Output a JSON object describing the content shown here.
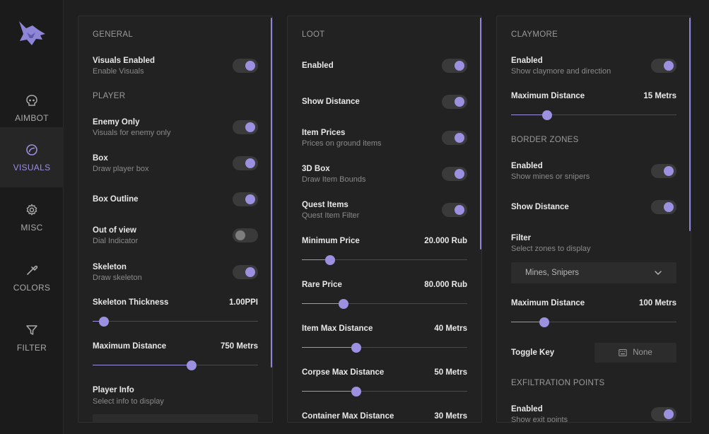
{
  "sidebar": {
    "logo_icon": "wolf-logo-icon",
    "items": [
      {
        "name": "aimbot",
        "label": "AIMBOT",
        "icon": "skull-icon",
        "active": false
      },
      {
        "name": "visuals",
        "label": "VISUALS",
        "icon": "eye-icon",
        "active": true
      },
      {
        "name": "misc",
        "label": "MISC",
        "icon": "gear-icon",
        "active": false
      },
      {
        "name": "colors",
        "label": "COLORS",
        "icon": "eyedropper-icon",
        "active": false
      },
      {
        "name": "filter",
        "label": "FILTER",
        "icon": "filter-icon",
        "active": false
      }
    ]
  },
  "accent_color": "#9b91e0",
  "panel1": {
    "general_title": "GENERAL",
    "visuals_enabled": {
      "label": "Visuals Enabled",
      "sub": "Enable Visuals",
      "on": true
    },
    "player_title": "PLAYER",
    "enemy_only": {
      "label": "Enemy Only",
      "sub": "Visuals for enemy only",
      "on": true
    },
    "box": {
      "label": "Box",
      "sub": "Draw player box",
      "on": true
    },
    "box_outline": {
      "label": "Box Outline",
      "on": true
    },
    "out_of_view": {
      "label": "Out of view",
      "sub": "Dial Indicator",
      "on": false
    },
    "skeleton": {
      "label": "Skeleton",
      "sub": "Draw skeleton",
      "on": true
    },
    "skeleton_thickness": {
      "label": "Skeleton Thickness",
      "value": "1.00PPI",
      "fraction": 0.07
    },
    "max_distance": {
      "label": "Maximum Distance",
      "value": "750 Metrs",
      "fraction": 0.6
    },
    "player_info": {
      "label": "Player Info",
      "sub": "Select info to display"
    }
  },
  "panel2": {
    "loot_title": "LOOT",
    "enabled": {
      "label": "Enabled",
      "on": true
    },
    "show_distance": {
      "label": "Show Distance",
      "on": true
    },
    "item_prices": {
      "label": "Item Prices",
      "sub": "Prices on ground items",
      "on": true
    },
    "box3d": {
      "label": "3D Box",
      "sub": "Draw Item Bounds",
      "on": true
    },
    "quest_items": {
      "label": "Quest Items",
      "sub": "Quest Item Filter",
      "on": true
    },
    "min_price": {
      "label": "Minimum Price",
      "value": "20.000 Rub",
      "fraction": 0.17
    },
    "rare_price": {
      "label": "Rare Price",
      "value": "80.000 Rub",
      "fraction": 0.25
    },
    "item_max_distance": {
      "label": "Item Max Distance",
      "value": "40 Metrs",
      "fraction": 0.33
    },
    "corpse_max_distance": {
      "label": "Corpse Max Distance",
      "value": "50 Metrs",
      "fraction": 0.33
    },
    "container_max_distance": {
      "label": "Container Max Distance",
      "value": "30 Metrs"
    }
  },
  "panel3": {
    "claymore_title": "CLAYMORE",
    "claymore_enabled": {
      "label": "Enabled",
      "sub": "Show claymore and direction",
      "on": true
    },
    "claymore_max_distance": {
      "label": "Maximum Distance",
      "value": "15 Metrs",
      "fraction": 0.22
    },
    "border_title": "BORDER ZONES",
    "border_enabled": {
      "label": "Enabled",
      "sub": "Show mines or snipers",
      "on": true
    },
    "border_show_distance": {
      "label": "Show Distance",
      "on": true
    },
    "filter": {
      "label": "Filter",
      "sub": "Select zones to display",
      "selected": "Mines, Snipers"
    },
    "border_max_distance": {
      "label": "Maximum Distance",
      "value": "100 Metrs",
      "fraction": 0.2
    },
    "toggle_key": {
      "label": "Toggle Key",
      "value": "None",
      "icon": "keyboard-icon"
    },
    "exfil_title": "EXFILTRATION POINTS",
    "exfil_enabled": {
      "label": "Enabled",
      "sub": "Show exit points",
      "on": true
    }
  }
}
